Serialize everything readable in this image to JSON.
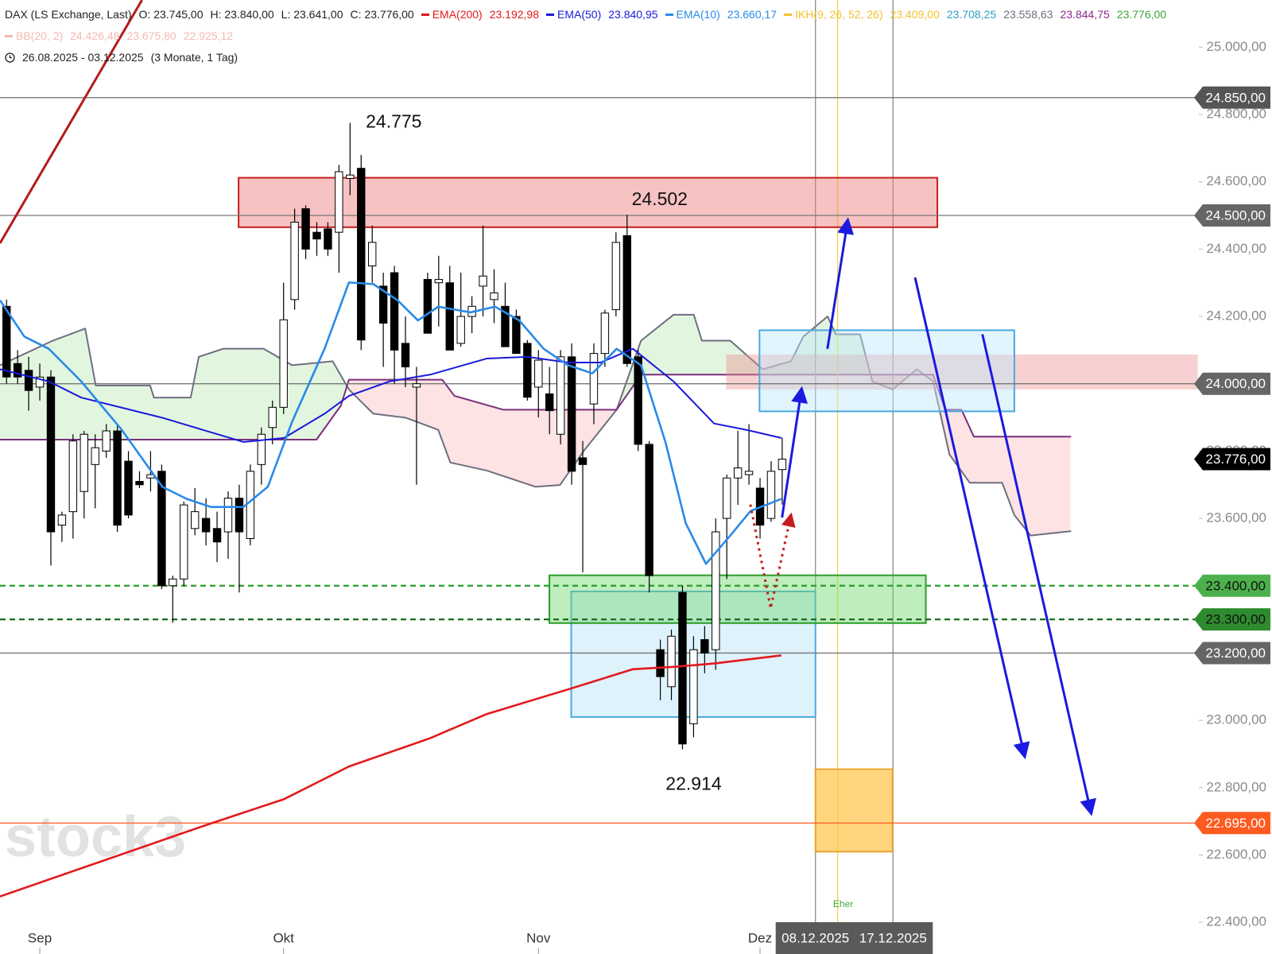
{
  "chart_data": {
    "type": "candlestick",
    "header": {
      "line1": [
        {
          "text": "DAX (LS Exchange, Last)",
          "color": "#222222",
          "marker": false
        },
        {
          "text": "O: 23.745,00",
          "color": "#222222",
          "marker": false
        },
        {
          "text": "H: 23.840,00",
          "color": "#222222",
          "marker": false
        },
        {
          "text": "L: 23.641,00",
          "color": "#222222",
          "marker": false
        },
        {
          "text": "C: 23.776,00",
          "color": "#222222",
          "marker": false
        },
        {
          "text": "EMA(200)",
          "color": "#e3191c",
          "marker": true
        },
        {
          "text": "23.192,98",
          "color": "#e3191c",
          "marker": false
        },
        {
          "text": "EMA(50)",
          "color": "#1a1adb",
          "marker": true
        },
        {
          "text": "23.840,95",
          "color": "#1a1adb",
          "marker": false
        },
        {
          "text": "EMA(10)",
          "color": "#2a8ae8",
          "marker": true
        },
        {
          "text": "23.660,17",
          "color": "#2a8ae8",
          "marker": false
        },
        {
          "text": "IKH(9, 26, 52, 26)",
          "color": "#f2c12e",
          "marker": true
        },
        {
          "text": "23.409,00",
          "color": "#f2c12e",
          "marker": false
        },
        {
          "text": "23.708,25",
          "color": "#2aa0c8",
          "marker": false
        },
        {
          "text": "23.558,63",
          "color": "#6e6e80",
          "marker": false
        },
        {
          "text": "23.844,75",
          "color": "#8a2a8a",
          "marker": false
        },
        {
          "text": "23.776,00",
          "color": "#3aa53a",
          "marker": false
        }
      ],
      "line2": [
        {
          "text": "BB(20, 2)",
          "color": "#f3b9b0",
          "marker": true
        },
        {
          "text": "24.426,48",
          "color": "#f3b9b0",
          "marker": false
        },
        {
          "text": "23.675,80",
          "color": "#f3b9b0",
          "marker": false
        },
        {
          "text": "22.925,12",
          "color": "#f3b9b0",
          "marker": false
        }
      ],
      "line3": [
        {
          "text": "26.08.2025 - 03.12.2025",
          "color": "#222222",
          "marker": false
        },
        {
          "text": "(3 Monate, 1 Tag)",
          "color": "#222222",
          "marker": false
        }
      ]
    },
    "watermark": "stock3",
    "xlim": [
      0.41,
      108.6
    ],
    "ylim": [
      22306,
      25140
    ],
    "xticks": [
      {
        "value": 4,
        "label": "Sep"
      },
      {
        "value": 26,
        "label": "Okt"
      },
      {
        "value": 49,
        "label": "Nov"
      },
      {
        "value": 69,
        "label": "Dez"
      }
    ],
    "yticks": [
      {
        "value": 22400,
        "label": "22.400,00"
      },
      {
        "value": 22600,
        "label": "22.600,00"
      },
      {
        "value": 22800,
        "label": "22.800,00"
      },
      {
        "value": 23000,
        "label": "23.000,00"
      },
      {
        "value": 23200,
        "label": "23.200,00"
      },
      {
        "value": 23400,
        "label": "23.400,00"
      },
      {
        "value": 23600,
        "label": "23.600,00"
      },
      {
        "value": 23800,
        "label": "23.800,00"
      },
      {
        "value": 24000,
        "label": "24.000,00"
      },
      {
        "value": 24200,
        "label": "24.200,00"
      },
      {
        "value": 24400,
        "label": "24.400,00"
      },
      {
        "value": 24600,
        "label": "24.600,00"
      },
      {
        "value": 24800,
        "label": "24.800,00"
      },
      {
        "value": 25000,
        "label": "25.000,00"
      }
    ],
    "grid": false,
    "up_color": "#ffffff",
    "down_color": "#000000",
    "x": [
      1,
      2,
      3,
      4,
      5,
      6,
      7,
      8,
      9,
      10,
      11,
      12,
      13,
      14,
      15,
      16,
      17,
      18,
      19,
      20,
      21,
      22,
      23,
      24,
      25,
      26,
      27,
      28,
      29,
      30,
      31,
      32,
      33,
      34,
      35,
      36,
      37,
      38,
      39,
      40,
      41,
      42,
      43,
      44,
      45,
      46,
      47,
      48,
      49,
      50,
      51,
      52,
      53,
      54,
      55,
      56,
      57,
      58,
      59,
      60,
      61,
      62,
      63,
      64,
      65,
      66,
      67,
      68,
      69,
      70,
      71
    ],
    "open": [
      24230,
      24060,
      24040,
      23990,
      24020,
      23580,
      23620,
      23680,
      23760,
      23800,
      23860,
      23770,
      23710,
      23720,
      23740,
      23400,
      23420,
      23570,
      23600,
      23570,
      23560,
      23660,
      23540,
      23760,
      23870,
      23930,
      24250,
      24520,
      24450,
      24460,
      24450,
      24610,
      24640,
      24350,
      24290,
      24330,
      24120,
      23990,
      24310,
      24300,
      24300,
      24120,
      24200,
      24290,
      24250,
      24230,
      24200,
      24120,
      23990,
      23970,
      23850,
      24080,
      23780,
      23940,
      24090,
      24220,
      24440,
      24080,
      23820,
      23210,
      23100,
      23380,
      22990,
      23240,
      23210,
      23600,
      23720,
      23730,
      23690,
      23600,
      23745
    ],
    "high": [
      24250,
      24100,
      24080,
      24060,
      24040,
      23620,
      23850,
      23860,
      23850,
      23880,
      23880,
      23800,
      23740,
      23800,
      23760,
      23430,
      23650,
      23690,
      23660,
      23620,
      23680,
      23700,
      23760,
      23870,
      23950,
      24300,
      24520,
      24530,
      24480,
      24480,
      24650,
      24775,
      24680,
      24470,
      24330,
      24350,
      24200,
      24050,
      24330,
      24380,
      24350,
      24330,
      24260,
      24470,
      24340,
      24300,
      24220,
      24130,
      24100,
      24050,
      24100,
      24120,
      23830,
      24120,
      24220,
      24450,
      24502,
      24100,
      23830,
      23240,
      23270,
      23400,
      23250,
      23280,
      23600,
      23730,
      23860,
      23880,
      23720,
      23770,
      23840
    ],
    "low": [
      24000,
      24000,
      23920,
      23950,
      23460,
      23530,
      23540,
      23600,
      23630,
      23780,
      23560,
      23600,
      23690,
      23680,
      23390,
      23290,
      23400,
      23550,
      23520,
      23470,
      23480,
      23380,
      23520,
      23700,
      23820,
      23910,
      24220,
      24370,
      24380,
      24380,
      24330,
      24560,
      24100,
      24300,
      24050,
      24000,
      23990,
      23700,
      24150,
      24170,
      24100,
      24110,
      24150,
      24200,
      24180,
      24110,
      24090,
      23950,
      23900,
      23850,
      23820,
      23700,
      23440,
      23880,
      24050,
      24200,
      24050,
      23800,
      23380,
      23060,
      23060,
      22914,
      22950,
      23140,
      23150,
      23420,
      23640,
      23700,
      23540,
      23590,
      23641
    ],
    "close": [
      24020,
      24020,
      23980,
      24020,
      23560,
      23610,
      23830,
      23850,
      23810,
      23860,
      23580,
      23610,
      23700,
      23730,
      23400,
      23420,
      23640,
      23620,
      23560,
      23530,
      23660,
      23560,
      23740,
      23850,
      23930,
      24190,
      24480,
      24400,
      24430,
      24400,
      24630,
      24620,
      24130,
      24420,
      24180,
      24100,
      24050,
      24000,
      24150,
      24310,
      24100,
      24200,
      24230,
      24320,
      24270,
      24110,
      24090,
      23960,
      24070,
      23920,
      24080,
      23740,
      23760,
      24090,
      24210,
      24420,
      24060,
      23820,
      23430,
      23130,
      23250,
      22930,
      23210,
      23200,
      23560,
      23720,
      23750,
      23740,
      23580,
      23740,
      23776
    ],
    "overlays": [
      {
        "color": "#e3191c",
        "width": 2.6,
        "x": [
          0.41,
          19.45,
          26.04,
          31.9,
          39.22,
          44.35,
          51.67,
          57.53,
          61.19,
          64.85,
          70.92
        ],
        "values": [
          22477,
          22694,
          22766,
          22863,
          22947,
          23019,
          23092,
          23152,
          23159,
          23169,
          23193
        ]
      },
      {
        "color": "#1a1adb",
        "width": 2,
        "x": [
          0.41,
          4.81,
          7.74,
          15.06,
          22.38,
          26.04,
          29.7,
          31.9,
          35.56,
          39.22,
          44.35,
          48.01,
          51.67,
          54.6,
          57.53,
          61.19,
          64.85,
          67.78,
          70.92
        ],
        "values": [
          24043,
          24007,
          23959,
          23899,
          23827,
          23839,
          23911,
          23964,
          24007,
          24027,
          24075,
          24080,
          24063,
          24063,
          24104,
          24007,
          23882,
          23863,
          23839
        ]
      },
      {
        "color": "#2a8ae8",
        "width": 2.6,
        "x": [
          0.41,
          2.61,
          4.81,
          7.74,
          11.4,
          15.06,
          17.25,
          19.45,
          22.38,
          24.58,
          26.77,
          29.7,
          31.9,
          34.1,
          36.29,
          38.13,
          39.96,
          42.88,
          45.08,
          47.28,
          49.47,
          51.67,
          53.87,
          56.06,
          58.26,
          60.46,
          62.29,
          64.12,
          66.31,
          68.14,
          70.92
        ],
        "values": [
          24248,
          24140,
          24104,
          24007,
          23863,
          23694,
          23658,
          23634,
          23634,
          23694,
          23887,
          24104,
          24301,
          24296,
          24248,
          24188,
          24229,
          24212,
          24229,
          24188,
          24104,
          24055,
          24031,
          24104,
          24055,
          23827,
          23586,
          23465,
          23549,
          23622,
          23658
        ]
      }
    ],
    "ichimoku": {
      "span_a": {
        "color": "#6e6e80",
        "x": [
          0.41,
          5.17,
          8.1,
          9.05,
          13.96,
          14.3,
          17.62,
          18.35,
          20.55,
          24.2,
          26.77,
          30.43,
          31.9,
          34.1,
          37.03,
          39.96,
          41.05,
          44.35,
          48.74,
          50.94,
          53.13,
          56.06,
          58.26,
          61.19,
          63.02,
          63.75,
          66.31,
          69.24,
          71.8,
          72.9,
          75.1,
          75.83,
          78.03,
          79.13,
          80.96,
          83.15,
          84.62,
          86.09,
          87.92,
          90.85,
          91.95,
          93.41,
          97.07
        ],
        "values": [
          24055,
          24128,
          24164,
          23995,
          23995,
          23959,
          23959,
          24080,
          24104,
          24104,
          24055,
          24067,
          23983,
          23911,
          23899,
          23863,
          23766,
          23742,
          23694,
          23699,
          23802,
          23923,
          24128,
          24205,
          24205,
          24128,
          24128,
          24043,
          24067,
          24140,
          24200,
          24147,
          24147,
          24007,
          23983,
          24043,
          24007,
          23790,
          23706,
          23706,
          23610,
          23549,
          23562
        ]
      },
      "span_b": {
        "color": "#7a2f7a",
        "x": [
          0.41,
          28.97,
          31.17,
          31.9,
          40.32,
          41.42,
          45.81,
          56.06,
          58.26,
          84.62,
          85.72,
          87.18,
          88.29,
          97.07
        ],
        "values": [
          23834,
          23834,
          23935,
          24012,
          24012,
          23964,
          23923,
          23923,
          24027,
          24027,
          23923,
          23923,
          23843,
          23843
        ]
      },
      "bull_fill": "#dff5dc",
      "bear_fill": "#fde0e0"
    },
    "zones": [
      {
        "xlim": [
          51.96,
          74
        ],
        "ylim": [
          23010,
          23383
        ],
        "fill": "rgba(190,230,250,0.5)",
        "stroke": "#4aa8e0"
      },
      {
        "xlim": [
          65.95,
          108.5
        ],
        "ylim": [
          23983,
          24087
        ],
        "fill": "rgba(236,140,140,0.4)",
        "stroke": "none"
      },
      {
        "xlim": [
          68.95,
          91.95
        ],
        "ylim": [
          23918,
          24159
        ],
        "fill": "rgba(190,230,250,0.45)",
        "stroke": "#4aa8e0"
      },
      {
        "xlim": [
          49.99,
          83.96
        ],
        "ylim": [
          23289,
          23431
        ],
        "fill": "rgba(110,215,110,0.45)",
        "stroke": "#2a9d2a"
      },
      {
        "xlim": [
          21.94,
          85.0
        ],
        "ylim": [
          24465,
          24612
        ],
        "fill": "rgba(238,120,120,0.45)",
        "stroke": "#c41e1e"
      },
      {
        "xlim": [
          74,
          80.96
        ],
        "ylim": [
          22610,
          22855
        ],
        "fill": "rgba(255,196,70,0.7)",
        "stroke": "#e8a530"
      }
    ],
    "levels": [
      {
        "value": 24850,
        "label": "24.850,00",
        "line": "#777777",
        "badge": "#555555",
        "text_color": "#ffffff",
        "dashed": false
      },
      {
        "value": 24500,
        "label": "24.500,00",
        "line": "#777777",
        "badge": "#666666",
        "text_color": "#ffffff",
        "dashed": false
      },
      {
        "value": 24000,
        "label": "24.000,00",
        "line": "#777777",
        "badge": "#666666",
        "text_color": "#ffffff",
        "dashed": false
      },
      {
        "value": 23776,
        "label": "23.776,00",
        "line": null,
        "badge": "#000000",
        "text_color": "#ffffff",
        "dashed": false
      },
      {
        "value": 23400,
        "label": "23.400,00",
        "line": "#2a9d2a",
        "badge": "#4cb14c",
        "text_color": "#111111",
        "dashed": true
      },
      {
        "value": 23300,
        "label": "23.300,00",
        "line": "#1e6b1e",
        "badge": "#2e8b2e",
        "text_color": "#111111",
        "dashed": true
      },
      {
        "value": 23200,
        "label": "23.200,00",
        "line": "#777777",
        "badge": "#666666",
        "text_color": "#ffffff",
        "dashed": false
      },
      {
        "value": 22695,
        "label": "22.695,00",
        "line": "#ff5a1f",
        "badge": "#ff5a1f",
        "text_color": "#ffffff",
        "dashed": false
      }
    ],
    "verticals": [
      {
        "x": 74,
        "color": "#8a8a8a",
        "label": "08.12.2025"
      },
      {
        "x": 76,
        "color": "#f5d34a",
        "label": null
      },
      {
        "x": 81,
        "color": "#8a8a8a",
        "label": "17.12.2025"
      }
    ],
    "annotations": [
      {
        "x": 32,
        "value": 24775,
        "label": "24.775"
      },
      {
        "x": 57,
        "value": 24502,
        "label": "24.502"
      },
      {
        "x": 62,
        "value": 22914,
        "label": "22.914"
      }
    ],
    "note": {
      "x": 76.5,
      "label": "Eher",
      "color": "#3aa53a"
    }
  }
}
